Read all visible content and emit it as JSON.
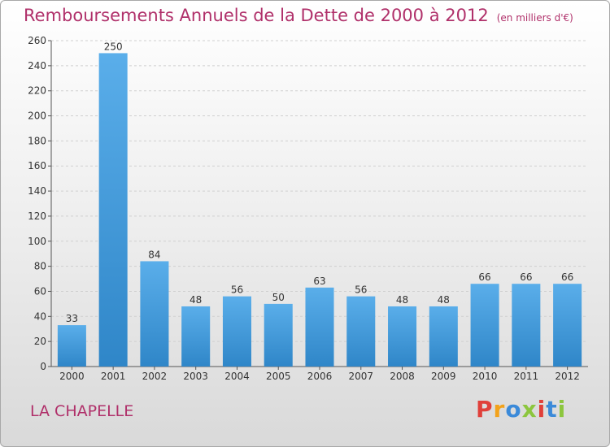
{
  "header": {
    "title": "Remboursements Annuels de la Dette de 2000 à 2012",
    "unit": "(en milliers d'€)"
  },
  "footer": {
    "commune": "LA CHAPELLE",
    "brand": "Proxiti",
    "brand_colors": [
      "#e0403a",
      "#f2a21b",
      "#3b8ad9",
      "#8cc63e",
      "#e0403a",
      "#3b8ad9",
      "#8cc63e"
    ]
  },
  "colors": {
    "bar_light": "#5aaeea",
    "bar_dark": "#2f86c8",
    "grid": "#cfcfcf",
    "axis": "#555555",
    "title": "#b0306a"
  },
  "chart_data": {
    "type": "bar",
    "categories": [
      "2000",
      "2001",
      "2002",
      "2003",
      "2004",
      "2005",
      "2006",
      "2007",
      "2008",
      "2009",
      "2010",
      "2011",
      "2012"
    ],
    "values": [
      33,
      250,
      84,
      48,
      56,
      50,
      63,
      56,
      48,
      48,
      66,
      66,
      66
    ],
    "title": "Remboursements Annuels de la Dette de 2000 à 2012",
    "xlabel": "",
    "ylabel": "",
    "ylim": [
      0,
      260
    ],
    "yticks": [
      0,
      20,
      40,
      60,
      80,
      100,
      120,
      140,
      160,
      180,
      200,
      220,
      240,
      260
    ],
    "grid": true,
    "data_labels": true
  }
}
